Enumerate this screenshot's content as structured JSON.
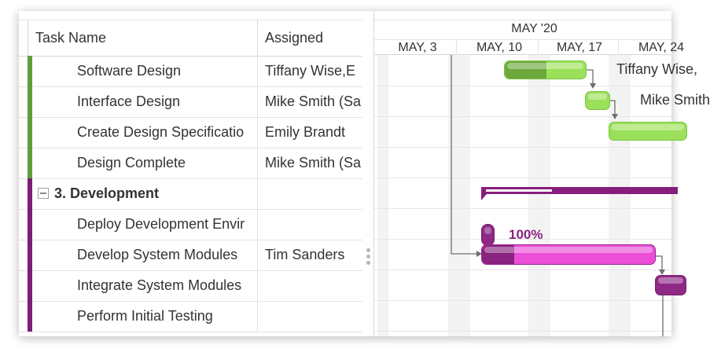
{
  "grid": {
    "columns": {
      "task_name": "Task Name",
      "assigned": "Assigned"
    },
    "rows": [
      {
        "name": "Software Design",
        "assigned": "Tiffany Wise,E",
        "type": "task",
        "color": "#5f9e3a"
      },
      {
        "name": "Interface Design",
        "assigned": "Mike Smith (Sa",
        "type": "task",
        "color": "#5f9e3a"
      },
      {
        "name": "Create Design Specificatio",
        "assigned": "Emily Brandt",
        "type": "task",
        "color": "#5f9e3a"
      },
      {
        "name": "Design Complete",
        "assigned": "Mike Smith (Sa",
        "type": "task",
        "color": "#5f9e3a"
      },
      {
        "name": "3. Development",
        "assigned": "",
        "type": "group",
        "color": "#7b1f74"
      },
      {
        "name": "Deploy Development Envir",
        "assigned": "",
        "type": "task",
        "color": "#7b1f74"
      },
      {
        "name": "Develop System Modules",
        "assigned": "Tim Sanders",
        "type": "task",
        "color": "#7b1f74"
      },
      {
        "name": "Integrate System Modules",
        "assigned": "",
        "type": "task",
        "color": "#7b1f74"
      },
      {
        "name": "Perform Initial Testing",
        "assigned": "",
        "type": "task",
        "color": "#7b1f74"
      }
    ]
  },
  "timeline": {
    "month": "MAY '20",
    "weeks": [
      "MAY, 3",
      "MAY, 10",
      "MAY, 17",
      "MAY, 24"
    ],
    "labels": {
      "software_design": "Tiffany Wise,",
      "interface_design": "Mike Smith",
      "deploy_progress": "100%"
    }
  },
  "colors": {
    "design": "#9be05a",
    "design_done": "#6ea83d",
    "development": "#ea4fd6",
    "development_done": "#8a2280",
    "summary": "#851e7d"
  }
}
